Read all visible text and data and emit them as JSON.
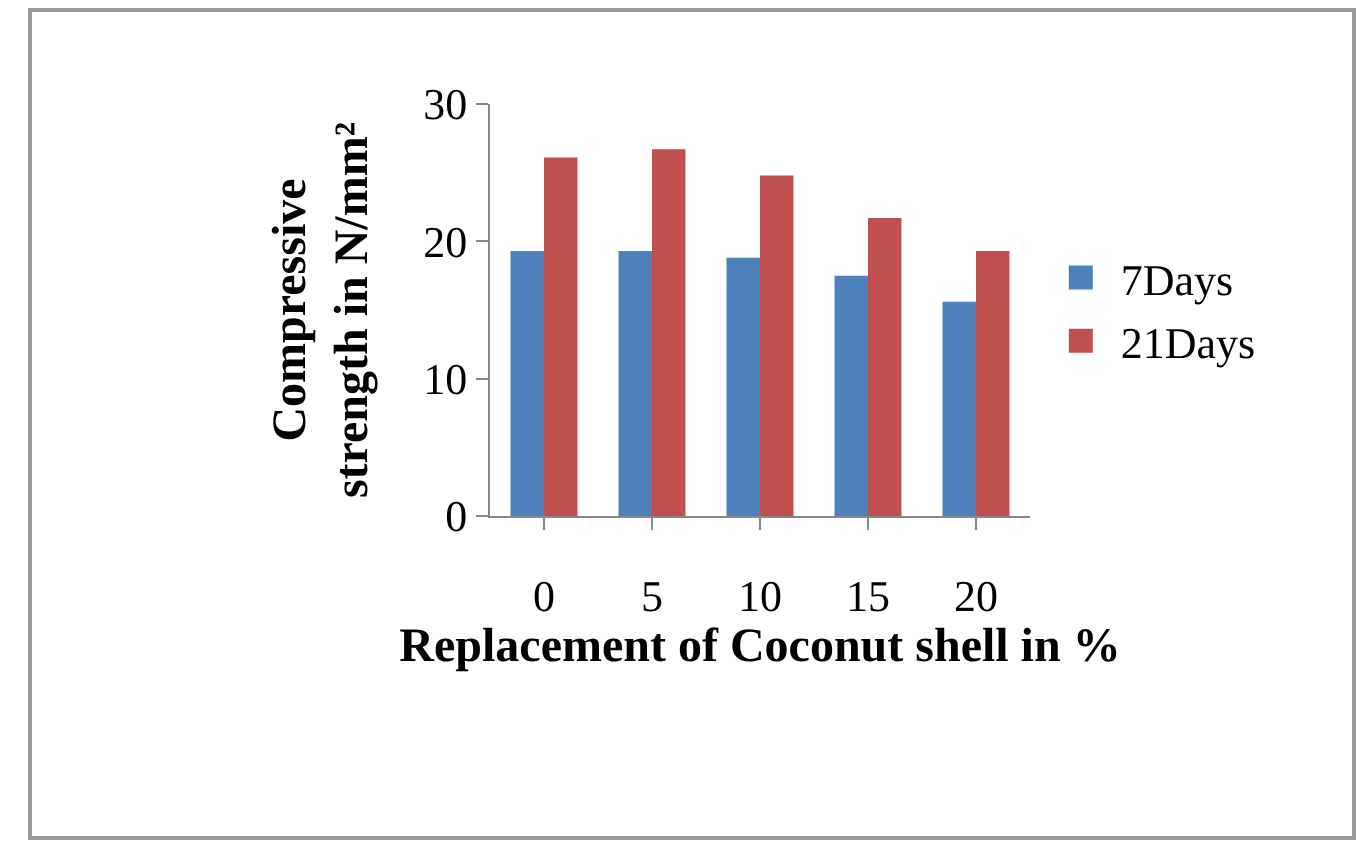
{
  "chart_data": {
    "type": "bar",
    "xlabel": "Replacement of Coconut shell in %",
    "ylabel": "Compressive strength in N/mm²",
    "categories": [
      "0",
      "5",
      "10",
      "15",
      "20"
    ],
    "series": [
      {
        "name": "7Days",
        "color": "#4f81bd",
        "values": [
          19.3,
          19.3,
          18.8,
          17.5,
          15.6
        ]
      },
      {
        "name": "21Days",
        "color": "#c0504d",
        "values": [
          26.1,
          26.7,
          24.8,
          21.7,
          19.3
        ]
      }
    ],
    "ylim": [
      0,
      30
    ],
    "yticks": [
      0,
      10,
      20,
      30
    ],
    "grid": false,
    "legend": "right"
  }
}
